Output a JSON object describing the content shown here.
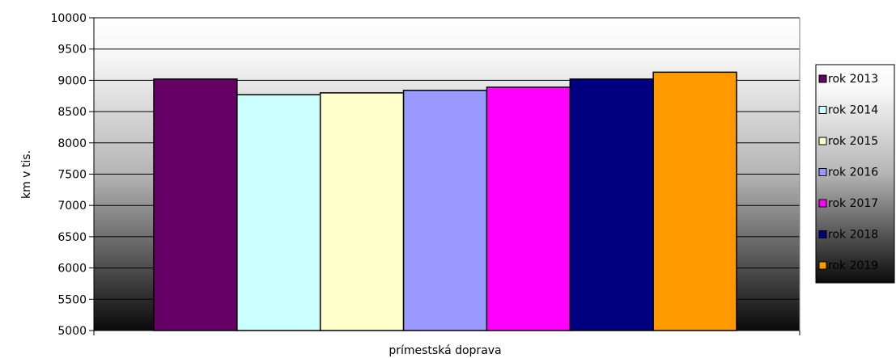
{
  "chart_data": {
    "type": "bar",
    "title": "",
    "xlabel": "prímestská doprava",
    "ylabel": "km  v tis.",
    "ylim": [
      5000,
      10000
    ],
    "yticks": [
      5000,
      5500,
      6000,
      6500,
      7000,
      7500,
      8000,
      8500,
      9000,
      9500,
      10000
    ],
    "grid": true,
    "legend_position": "right",
    "categories": [
      "prímestská doprava"
    ],
    "series": [
      {
        "name": "rok 2013",
        "values": [
          9020
        ],
        "color": "#660066"
      },
      {
        "name": "rok 2014",
        "values": [
          8770
        ],
        "color": "#CCFFFF"
      },
      {
        "name": "rok 2015",
        "values": [
          8800
        ],
        "color": "#FFFFCC"
      },
      {
        "name": "rok 2016",
        "values": [
          8840
        ],
        "color": "#9999FF"
      },
      {
        "name": "rok 2017",
        "values": [
          8890
        ],
        "color": "#FF00FF"
      },
      {
        "name": "rok 2018",
        "values": [
          9020
        ],
        "color": "#000080"
      },
      {
        "name": "rok 2019",
        "values": [
          9130
        ],
        "color": "#FF9900"
      }
    ],
    "legend_entries": [
      "rok 2013",
      "rok 2014",
      "rok 2015",
      "rok 2016",
      "rok 2017",
      "rok 2018",
      "rok 2019"
    ]
  }
}
